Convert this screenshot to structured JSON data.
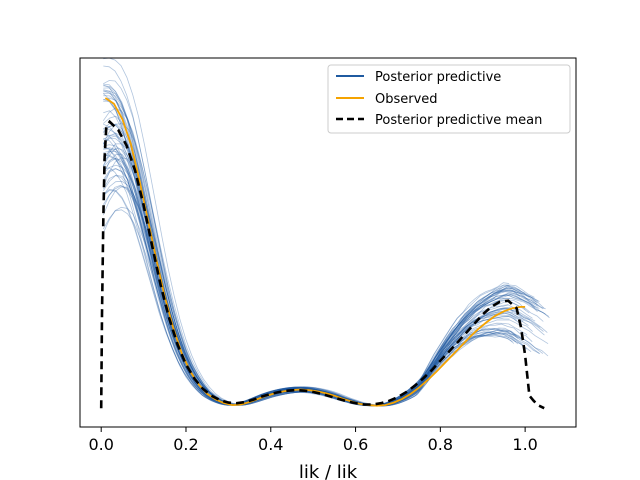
{
  "chart_data": {
    "type": "line",
    "title": "",
    "xlabel": "lik / lik",
    "ylabel": "",
    "xlim": [
      -0.05,
      1.12
    ],
    "ylim": [
      -0.3,
      5.6
    ],
    "xticks": [
      {
        "value": 0.0,
        "label": "0.0"
      },
      {
        "value": 0.2,
        "label": "0.2"
      },
      {
        "value": 0.4,
        "label": "0.4"
      },
      {
        "value": 0.6,
        "label": "0.6"
      },
      {
        "value": 0.8,
        "label": "0.8"
      },
      {
        "value": 1.0,
        "label": "1.0"
      }
    ],
    "yticks_visible": false,
    "grid": false,
    "legend": {
      "placement": "top-right",
      "entries": [
        {
          "label": "Posterior predictive",
          "color": "#1f5aa0",
          "style": "solid"
        },
        {
          "label": "Observed",
          "color": "#f5a300",
          "style": "solid"
        },
        {
          "label": "Posterior predictive mean",
          "color": "#000000",
          "style": "dashed"
        }
      ]
    },
    "series": [
      {
        "name": "Observed",
        "color": "#f5a300",
        "x": [
          0.01,
          0.03,
          0.05,
          0.07,
          0.09,
          0.11,
          0.13,
          0.15,
          0.17,
          0.19,
          0.21,
          0.23,
          0.25,
          0.27,
          0.29,
          0.31,
          0.33,
          0.35,
          0.37,
          0.39,
          0.41,
          0.43,
          0.45,
          0.47,
          0.49,
          0.51,
          0.53,
          0.55,
          0.57,
          0.59,
          0.61,
          0.63,
          0.65,
          0.67,
          0.69,
          0.71,
          0.73,
          0.75,
          0.77,
          0.79,
          0.81,
          0.83,
          0.85,
          0.87,
          0.89,
          0.91,
          0.93,
          0.95,
          0.97,
          0.99,
          1.0
        ],
        "y": [
          4.96,
          4.87,
          4.62,
          4.22,
          3.65,
          3.02,
          2.38,
          1.78,
          1.28,
          0.88,
          0.59,
          0.38,
          0.23,
          0.14,
          0.08,
          0.05,
          0.06,
          0.1,
          0.15,
          0.2,
          0.24,
          0.27,
          0.29,
          0.3,
          0.29,
          0.27,
          0.24,
          0.2,
          0.15,
          0.11,
          0.07,
          0.05,
          0.04,
          0.05,
          0.09,
          0.15,
          0.23,
          0.33,
          0.45,
          0.58,
          0.72,
          0.86,
          1.0,
          1.14,
          1.27,
          1.38,
          1.48,
          1.55,
          1.6,
          1.62,
          1.62
        ]
      },
      {
        "name": "Posterior predictive mean",
        "color": "#000000",
        "x": [
          0.0,
          0.002,
          0.005,
          0.008,
          0.012,
          0.02,
          0.04,
          0.06,
          0.08,
          0.1,
          0.12,
          0.14,
          0.16,
          0.18,
          0.2,
          0.22,
          0.24,
          0.26,
          0.28,
          0.3,
          0.32,
          0.34,
          0.36,
          0.38,
          0.4,
          0.42,
          0.44,
          0.46,
          0.48,
          0.5,
          0.52,
          0.54,
          0.56,
          0.58,
          0.6,
          0.62,
          0.64,
          0.66,
          0.68,
          0.7,
          0.72,
          0.74,
          0.76,
          0.78,
          0.8,
          0.82,
          0.84,
          0.86,
          0.88,
          0.9,
          0.92,
          0.94,
          0.96,
          0.98,
          0.99,
          1.0,
          1.01,
          1.02,
          1.03,
          1.045
        ],
        "y": [
          0.0,
          1.5,
          3.0,
          4.0,
          4.5,
          4.58,
          4.45,
          4.2,
          3.8,
          3.25,
          2.6,
          1.98,
          1.45,
          1.02,
          0.7,
          0.47,
          0.31,
          0.2,
          0.13,
          0.09,
          0.08,
          0.1,
          0.14,
          0.19,
          0.23,
          0.26,
          0.28,
          0.29,
          0.28,
          0.26,
          0.23,
          0.19,
          0.15,
          0.11,
          0.08,
          0.06,
          0.06,
          0.08,
          0.12,
          0.18,
          0.26,
          0.36,
          0.48,
          0.61,
          0.76,
          0.9,
          1.05,
          1.2,
          1.35,
          1.5,
          1.62,
          1.7,
          1.72,
          1.6,
          1.3,
          0.85,
          0.2,
          0.12,
          0.05,
          0.0
        ]
      }
    ],
    "posterior_samples": {
      "color": "#1f5aa0",
      "count": 60,
      "x_range": [
        0.0,
        1.06
      ],
      "ymax_at_zero_range": [
        3.1,
        4.95
      ],
      "right_end_y_range": [
        1.05,
        2.1
      ]
    }
  }
}
